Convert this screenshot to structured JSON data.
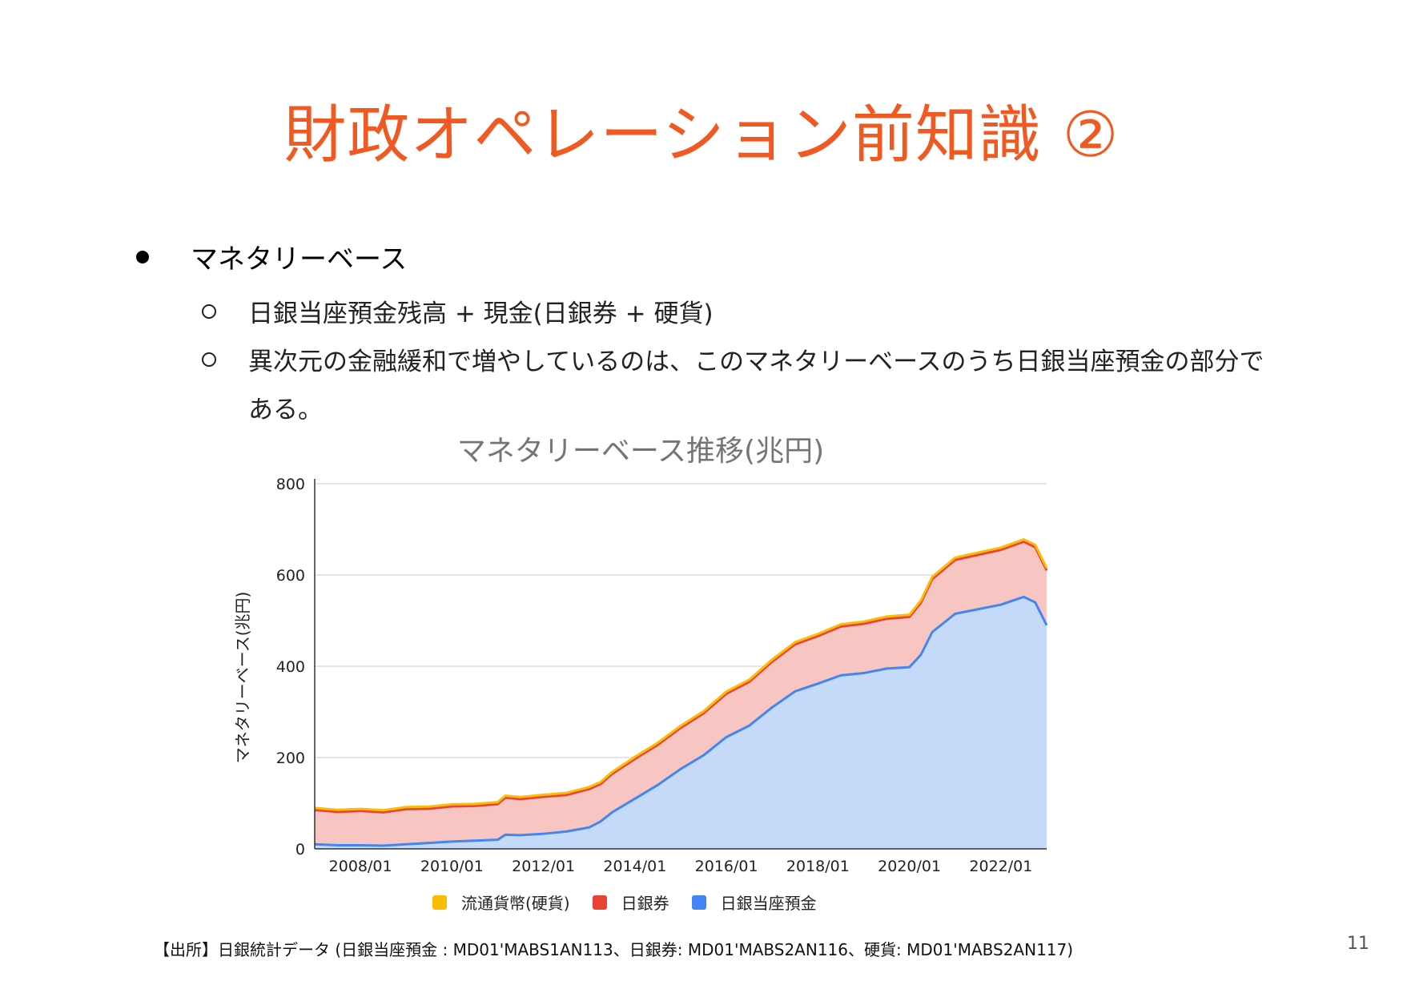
{
  "slide": {
    "title": "財政オペレーション前知識 ②",
    "bullet1": "マネタリーベース",
    "sub1": "日銀当座預金残高 + 現金(日銀券 + 硬貨)",
    "sub2_line1": "異次元の金融緩和で増やしているのは、このマネタリーベースのうち日銀当座預金の部分で",
    "sub2_line2": "ある。",
    "source": "【出所】日銀統計データ (日銀当座預金 : MD01'MABS1AN113、日銀券: MD01'MABS2AN116、硬貨: MD01'MABS2AN117)",
    "page_number": "11"
  },
  "chart_data": {
    "type": "area",
    "stacked": true,
    "title": "マネタリーベース推移(兆円)",
    "xlabel": "",
    "ylabel": "マネタリーベース(兆円)",
    "ylim": [
      0,
      800
    ],
    "yticks": [
      "0",
      "200",
      "400",
      "600",
      "800"
    ],
    "xticks": [
      "2008/01",
      "2010/01",
      "2012/01",
      "2014/01",
      "2016/01",
      "2018/01",
      "2020/01",
      "2022/01"
    ],
    "grid": true,
    "legend_position": "bottom",
    "x": [
      "2007/01",
      "2007/07",
      "2008/01",
      "2008/07",
      "2009/01",
      "2009/07",
      "2010/01",
      "2010/07",
      "2011/01",
      "2011/03",
      "2011/07",
      "2012/01",
      "2012/07",
      "2013/01",
      "2013/04",
      "2013/07",
      "2014/01",
      "2014/07",
      "2015/01",
      "2015/07",
      "2016/01",
      "2016/07",
      "2017/01",
      "2017/07",
      "2018/01",
      "2018/07",
      "2019/01",
      "2019/07",
      "2020/01",
      "2020/04",
      "2020/07",
      "2021/01",
      "2021/07",
      "2022/01",
      "2022/07",
      "2022/10",
      "2023/01"
    ],
    "series": [
      {
        "name": "流通貨幣(硬貨)",
        "color": "#fbbc04",
        "values": [
          4.6,
          4.6,
          4.6,
          4.6,
          4.6,
          4.6,
          4.5,
          4.5,
          4.5,
          4.5,
          4.5,
          4.5,
          4.5,
          4.5,
          4.5,
          4.5,
          4.5,
          4.5,
          4.6,
          4.6,
          4.7,
          4.7,
          4.7,
          4.8,
          4.8,
          4.8,
          4.9,
          4.9,
          4.9,
          5.0,
          5.0,
          5.0,
          5.0,
          5.0,
          4.9,
          4.9,
          4.9
        ]
      },
      {
        "name": "日銀券",
        "color": "#ea4335",
        "values": [
          75,
          73,
          75,
          73,
          77,
          75,
          77,
          76,
          78,
          81,
          79,
          81,
          80,
          84,
          82,
          84,
          87,
          88,
          90,
          92,
          95,
          96,
          100,
          103,
          104,
          107,
          108,
          109,
          110,
          114,
          116,
          118,
          119,
          120,
          121,
          121,
          120
        ]
      },
      {
        "name": "日銀当座預金",
        "color": "#4285f4",
        "values": [
          10,
          8,
          8,
          7,
          10,
          13,
          16,
          18,
          20,
          31,
          30,
          33,
          38,
          47,
          60,
          80,
          110,
          140,
          175,
          205,
          245,
          270,
          310,
          345,
          362,
          380,
          385,
          395,
          398,
          425,
          475,
          515,
          525,
          535,
          552,
          540,
          490
        ]
      }
    ]
  }
}
